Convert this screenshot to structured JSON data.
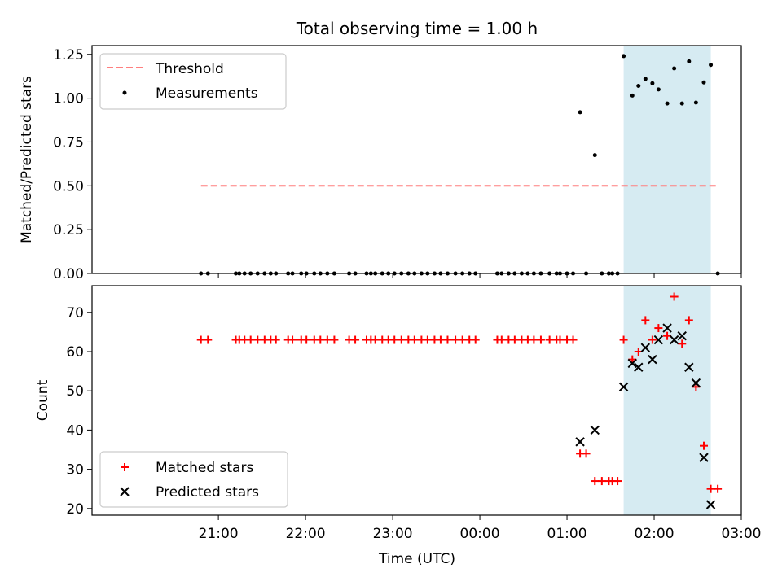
{
  "chart_data": {
    "title": "Total observing time = 1.00 h",
    "colors": {
      "threshold": "#ff7f7f",
      "measurements": "#000000",
      "matched": "#ff0000",
      "predicted": "#000000",
      "span": "#add8e6"
    },
    "span": [
      1.65,
      2.65
    ],
    "x_axis": {
      "label": "Time (UTC)",
      "range": [
        -4.45,
        3.0
      ],
      "ticks": [
        -3,
        -2,
        -1,
        0,
        1,
        2,
        3
      ],
      "tick_labels": [
        "21:00",
        "22:00",
        "23:00",
        "00:00",
        "01:00",
        "02:00",
        "03:00"
      ]
    },
    "panels": [
      {
        "type": "scatter",
        "ylabel": "Matched/Predicted stars",
        "ylim": [
          0,
          1.3
        ],
        "yticks": [
          0.0,
          0.25,
          0.5,
          0.75,
          1.0,
          1.25
        ],
        "ytick_labels": [
          "0.00",
          "0.25",
          "0.50",
          "0.75",
          "1.00",
          "1.25"
        ],
        "legend": {
          "position": "upper-left",
          "entries": [
            "Threshold",
            "Measurements"
          ]
        },
        "threshold": {
          "name": "Threshold",
          "y": 0.5,
          "x": [
            -3.2,
            2.73
          ]
        },
        "measurements": {
          "name": "Measurements",
          "x": [
            -3.2,
            -3.12,
            -2.8,
            -2.76,
            -2.7,
            -2.63,
            -2.55,
            -2.47,
            -2.4,
            -2.34,
            -2.2,
            -2.15,
            -2.05,
            -1.99,
            -1.9,
            -1.83,
            -1.75,
            -1.67,
            -1.5,
            -1.43,
            -1.3,
            -1.25,
            -1.2,
            -1.12,
            -1.05,
            -0.98,
            -0.9,
            -0.82,
            -0.75,
            -0.67,
            -0.6,
            -0.52,
            -0.45,
            -0.37,
            -0.28,
            -0.2,
            -0.12,
            -0.05,
            0.2,
            0.25,
            0.33,
            0.4,
            0.48,
            0.55,
            0.62,
            0.7,
            0.8,
            0.88,
            0.92,
            1.0,
            1.07,
            1.15,
            1.22,
            1.32,
            1.4,
            1.48,
            1.52,
            1.58,
            1.65,
            1.75,
            1.82,
            1.9,
            1.98,
            2.05,
            2.15,
            2.23,
            2.32,
            2.4,
            2.48,
            2.57,
            2.65,
            2.73
          ],
          "y": [
            0,
            0,
            0,
            0,
            0,
            0,
            0,
            0,
            0,
            0,
            0,
            0,
            0,
            0,
            0,
            0,
            0,
            0,
            0,
            0,
            0,
            0,
            0,
            0,
            0,
            0,
            0,
            0,
            0,
            0,
            0,
            0,
            0,
            0,
            0,
            0,
            0,
            0,
            0,
            0,
            0,
            0,
            0,
            0,
            0,
            0,
            0,
            0,
            0,
            0,
            0,
            0.92,
            0,
            0.675,
            0,
            0,
            0,
            0,
            1.24,
            1.015,
            1.07,
            1.11,
            1.085,
            1.05,
            0.97,
            1.17,
            0.97,
            1.21,
            0.975,
            1.09,
            1.19,
            0
          ]
        }
      },
      {
        "type": "scatter",
        "ylabel": "Count",
        "ylim": [
          18.3,
          76.8
        ],
        "yticks": [
          20,
          30,
          40,
          50,
          60,
          70
        ],
        "ytick_labels": [
          "20",
          "30",
          "40",
          "50",
          "60",
          "70"
        ],
        "legend": {
          "position": "lower-left",
          "entries": [
            "Matched stars",
            "Predicted stars"
          ]
        },
        "matched": {
          "name": "Matched stars",
          "x": [
            -3.2,
            -3.12,
            -2.8,
            -2.76,
            -2.7,
            -2.63,
            -2.55,
            -2.47,
            -2.4,
            -2.34,
            -2.2,
            -2.15,
            -2.05,
            -1.99,
            -1.9,
            -1.83,
            -1.75,
            -1.67,
            -1.5,
            -1.43,
            -1.3,
            -1.25,
            -1.2,
            -1.12,
            -1.05,
            -0.98,
            -0.9,
            -0.82,
            -0.75,
            -0.67,
            -0.6,
            -0.52,
            -0.45,
            -0.37,
            -0.28,
            -0.2,
            -0.12,
            -0.05,
            0.2,
            0.25,
            0.33,
            0.4,
            0.48,
            0.55,
            0.62,
            0.7,
            0.8,
            0.88,
            0.92,
            1.0,
            1.07,
            1.15,
            1.22,
            1.32,
            1.4,
            1.48,
            1.52,
            1.58,
            1.65,
            1.75,
            1.82,
            1.9,
            1.98,
            2.05,
            2.15,
            2.23,
            2.32,
            2.4,
            2.48,
            2.57,
            2.65,
            2.73
          ],
          "y": [
            63,
            63,
            63,
            63,
            63,
            63,
            63,
            63,
            63,
            63,
            63,
            63,
            63,
            63,
            63,
            63,
            63,
            63,
            63,
            63,
            63,
            63,
            63,
            63,
            63,
            63,
            63,
            63,
            63,
            63,
            63,
            63,
            63,
            63,
            63,
            63,
            63,
            63,
            63,
            63,
            63,
            63,
            63,
            63,
            63,
            63,
            63,
            63,
            63,
            63,
            63,
            34,
            34,
            27,
            27,
            27,
            27,
            27,
            63,
            58,
            60,
            68,
            63,
            66,
            64,
            74,
            62,
            68,
            51,
            36,
            25,
            25
          ]
        },
        "predicted": {
          "name": "Predicted stars",
          "x": [
            1.15,
            1.32,
            1.65,
            1.75,
            1.82,
            1.9,
            1.98,
            2.05,
            2.15,
            2.23,
            2.32,
            2.4,
            2.48,
            2.57,
            2.65
          ],
          "y": [
            37,
            40,
            51,
            57,
            56,
            61,
            58,
            63,
            66,
            63,
            64,
            56,
            52,
            33,
            21
          ]
        }
      }
    ]
  }
}
